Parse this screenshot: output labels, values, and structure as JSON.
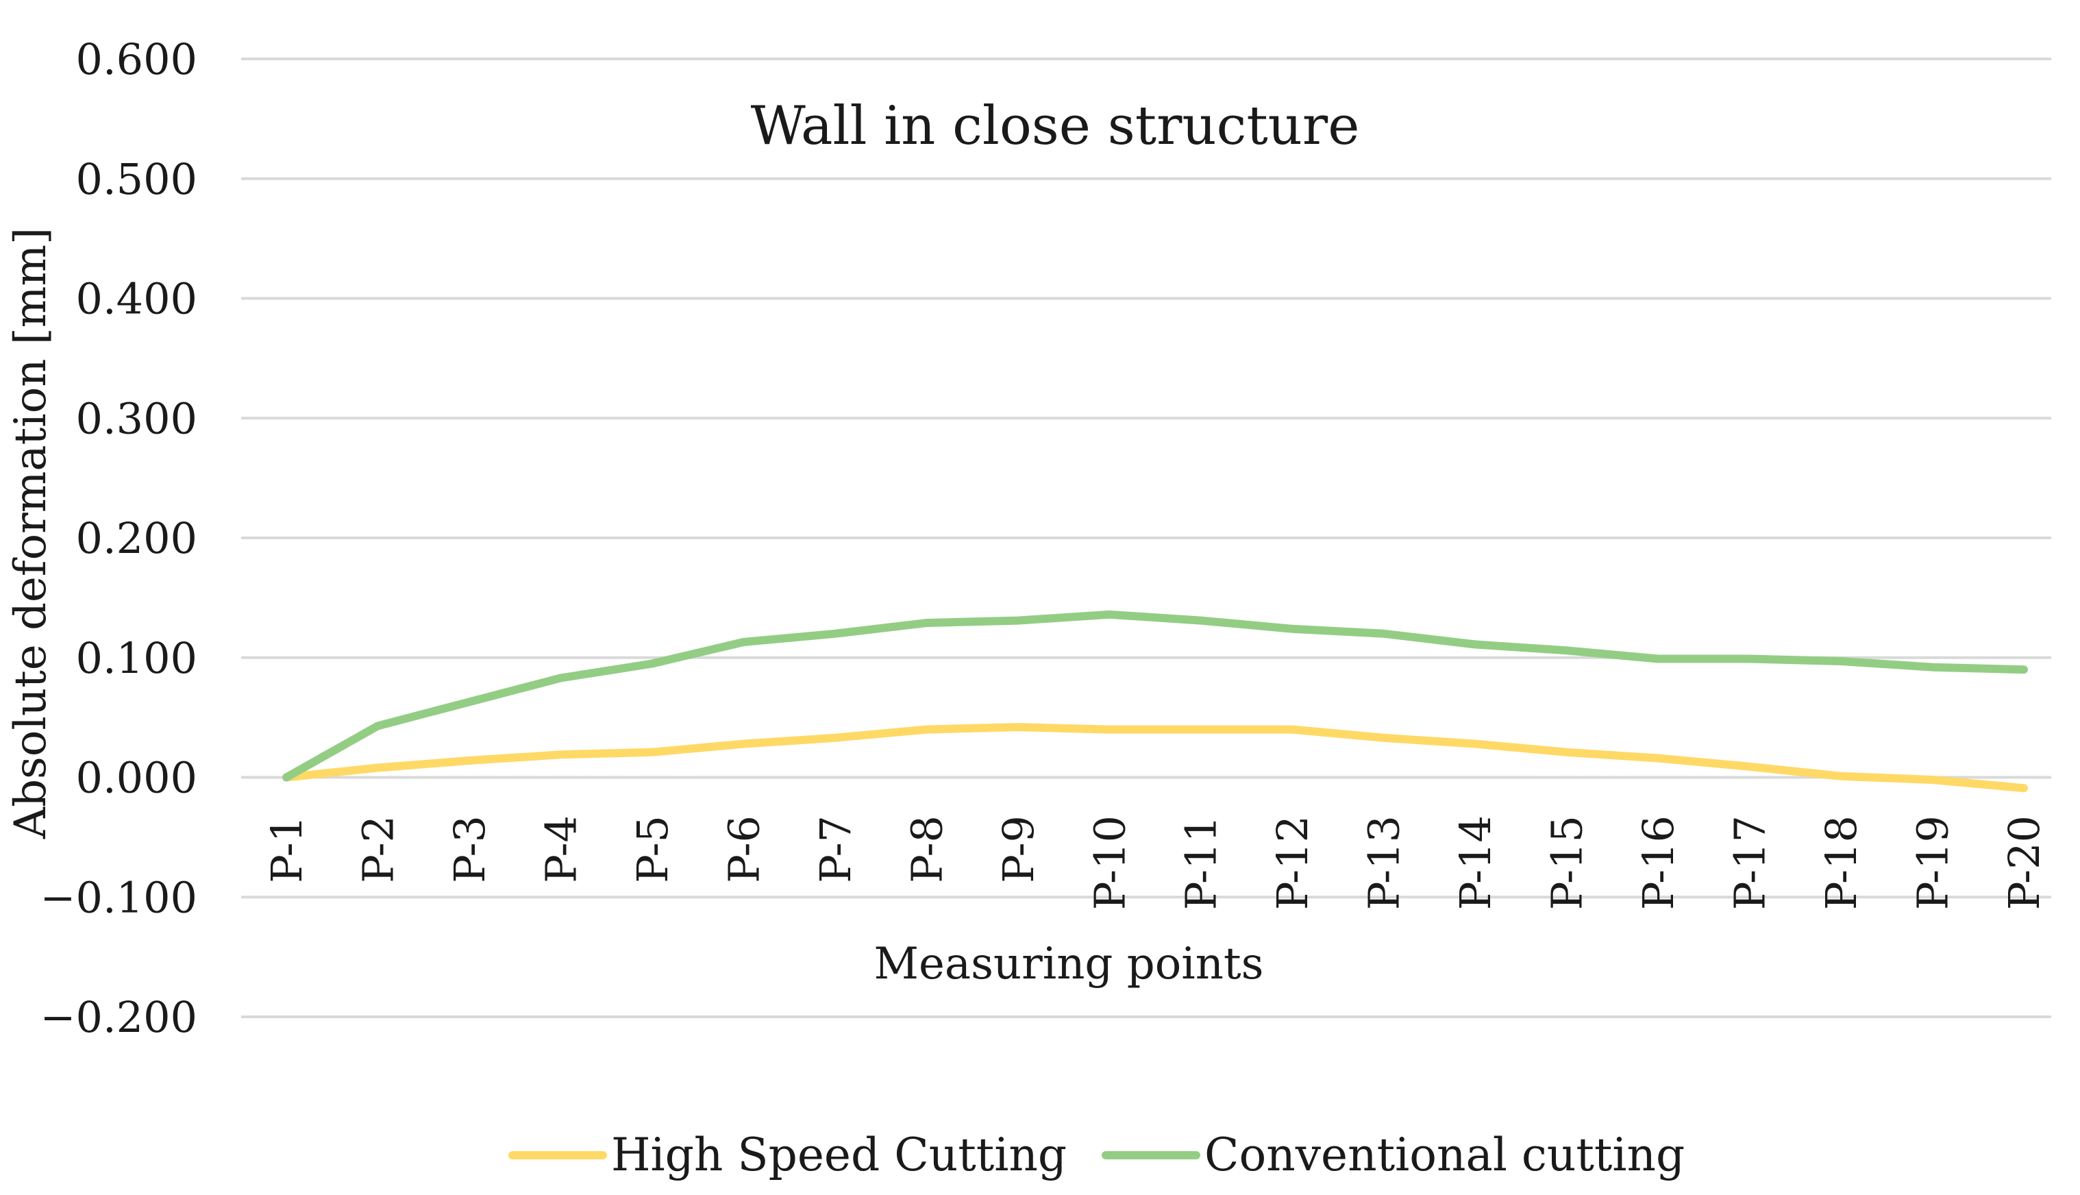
{
  "chart_data": {
    "type": "line",
    "title": "Wall in close structure",
    "xlabel": "Measuring points",
    "ylabel": "Absolute deformation [mm]",
    "ylim": [
      -0.2,
      0.6
    ],
    "yticks": [
      0.6,
      0.5,
      0.4,
      0.3,
      0.2,
      0.1,
      0.0,
      -0.1,
      -0.2
    ],
    "ytick_labels": [
      "0.600",
      "0.500",
      "0.400",
      "0.300",
      "0.200",
      "0.100",
      "0.000",
      "−0.100",
      "−0.200"
    ],
    "grid": true,
    "legend_position": "bottom-center",
    "categories": [
      "P-1",
      "P-2",
      "P-3",
      "P-4",
      "P-5",
      "P-6",
      "P-7",
      "P-8",
      "P-9",
      "P-10",
      "P-11",
      "P-12",
      "P-13",
      "P-14",
      "P-15",
      "P-16",
      "P-17",
      "P-18",
      "P-19",
      "P-20"
    ],
    "series": [
      {
        "name": "High Speed Cutting",
        "color": "#ffd966",
        "values": [
          0.0,
          0.008,
          0.014,
          0.019,
          0.021,
          0.028,
          0.033,
          0.04,
          0.042,
          0.04,
          0.04,
          0.04,
          0.033,
          0.028,
          0.021,
          0.016,
          0.009,
          0.001,
          -0.002,
          -0.009
        ]
      },
      {
        "name": "Conventional cutting",
        "color": "#93cd84",
        "values": [
          0.0,
          0.043,
          0.063,
          0.083,
          0.095,
          0.113,
          0.12,
          0.129,
          0.131,
          0.136,
          0.131,
          0.124,
          0.12,
          0.111,
          0.106,
          0.099,
          0.099,
          0.097,
          0.092,
          0.09
        ]
      }
    ]
  }
}
